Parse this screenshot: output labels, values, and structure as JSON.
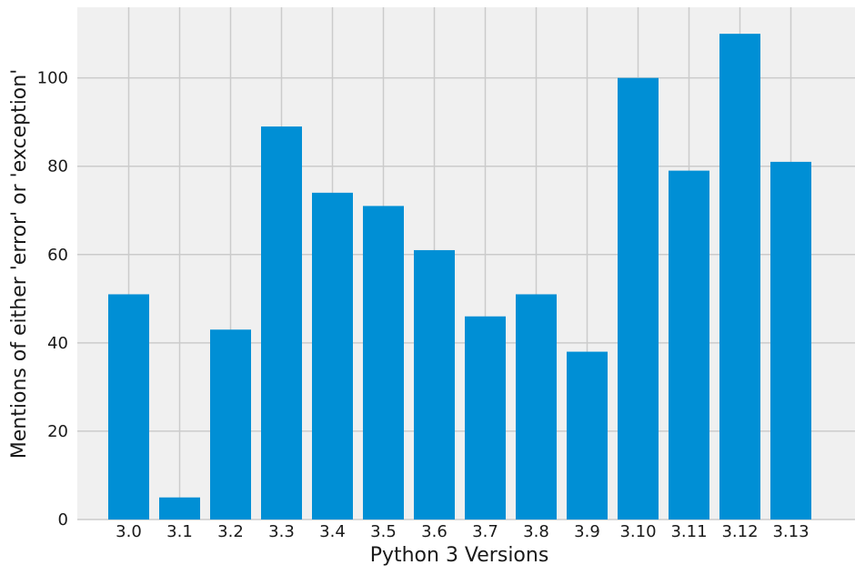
{
  "chart_data": {
    "type": "bar",
    "categories": [
      "3.0",
      "3.1",
      "3.2",
      "3.3",
      "3.4",
      "3.5",
      "3.6",
      "3.7",
      "3.8",
      "3.9",
      "3.10",
      "3.11",
      "3.12",
      "3.13"
    ],
    "values": [
      51,
      5,
      43,
      89,
      74,
      71,
      61,
      46,
      51,
      38,
      100,
      79,
      110,
      81
    ],
    "title": "",
    "xlabel": "Python 3 Versions",
    "ylabel": "Mentions of either 'error' or 'exception'",
    "ylim": [
      0,
      116
    ],
    "yticks": [
      0,
      20,
      40,
      60,
      80,
      100
    ],
    "grid": true,
    "legend": "none",
    "colors": {
      "bar": "#008fd5",
      "plot_background": "#f0f0f0",
      "grid": "#cbcbcb",
      "text": "#1a1a1a"
    }
  }
}
